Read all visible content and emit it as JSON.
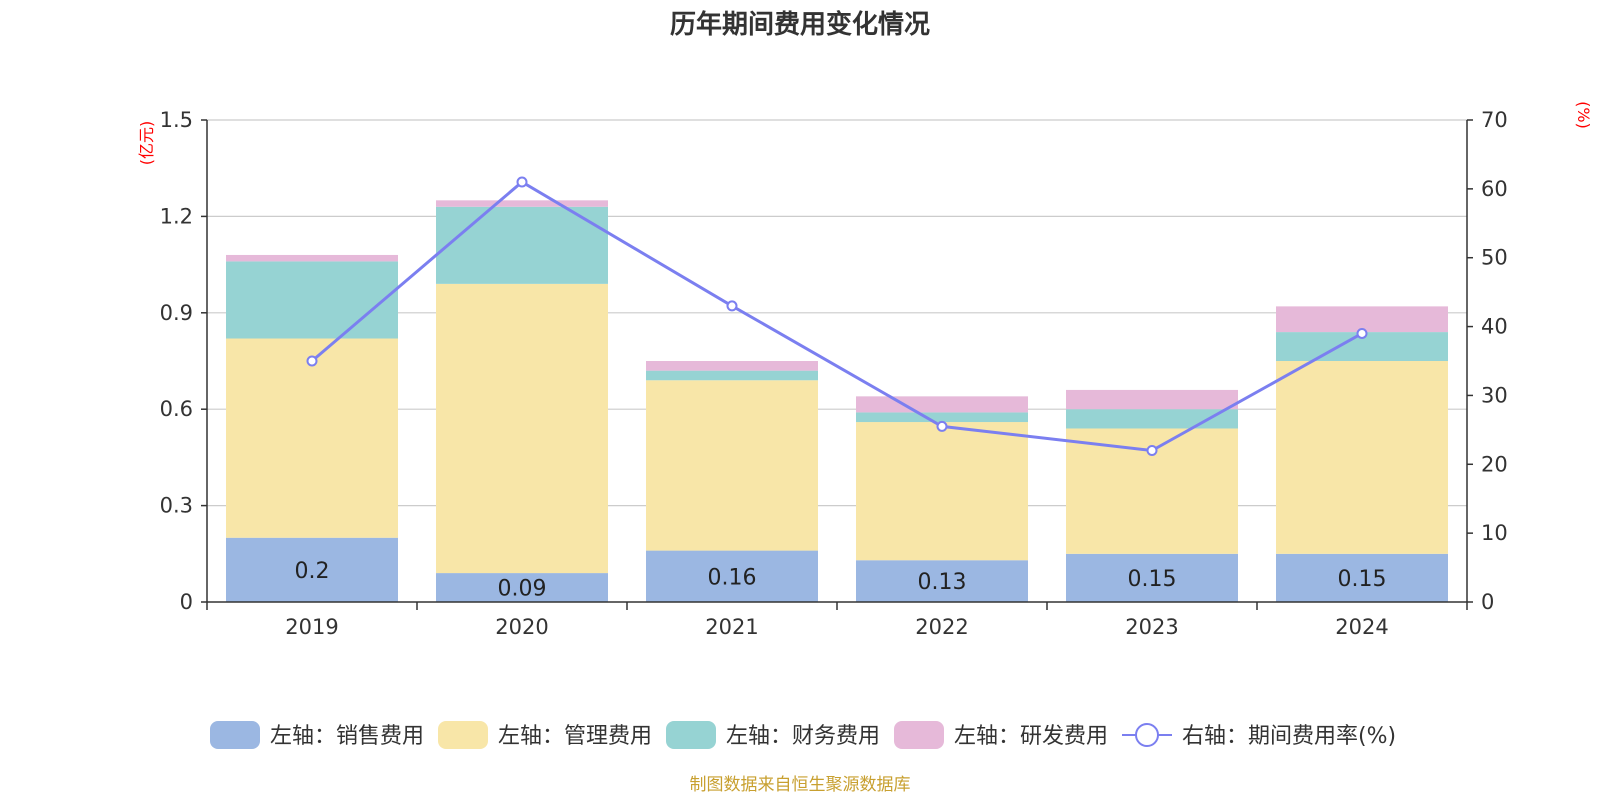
{
  "chart_data": {
    "type": "bar",
    "title": "历年期间费用变化情况",
    "categories": [
      "2019",
      "2020",
      "2021",
      "2022",
      "2023",
      "2024"
    ],
    "left_axis": {
      "unit": "(亿元)",
      "ylim": [
        0,
        1.5
      ],
      "ticks": [
        "0",
        "0.3",
        "0.6",
        "0.9",
        "1.2",
        "1.5"
      ],
      "tick_values": [
        0,
        0.3,
        0.6,
        0.9,
        1.2,
        1.5
      ]
    },
    "right_axis": {
      "unit": "(%)",
      "ylim": [
        0,
        70
      ],
      "ticks": [
        "0",
        "10",
        "20",
        "30",
        "40",
        "50",
        "60",
        "70"
      ],
      "tick_values": [
        0,
        10,
        20,
        30,
        40,
        50,
        60,
        70
      ]
    },
    "series": [
      {
        "name": "左轴：销售费用",
        "type": "bar",
        "stack": true,
        "color": "#9bb7e2",
        "values": [
          0.2,
          0.09,
          0.16,
          0.13,
          0.15,
          0.15
        ],
        "labels": [
          "0.2",
          "0.09",
          "0.16",
          "0.13",
          "0.15",
          "0.15"
        ]
      },
      {
        "name": "左轴：管理费用",
        "type": "bar",
        "stack": true,
        "color": "#f8e6a8",
        "values": [
          0.62,
          0.9,
          0.53,
          0.43,
          0.39,
          0.6
        ]
      },
      {
        "name": "左轴：财务费用",
        "type": "bar",
        "stack": true,
        "color": "#96d3d3",
        "values": [
          0.24,
          0.24,
          0.03,
          0.03,
          0.06,
          0.09
        ]
      },
      {
        "name": "左轴：研发费用",
        "type": "bar",
        "stack": true,
        "color": "#e6b9d9",
        "values": [
          0.02,
          0.02,
          0.03,
          0.05,
          0.06,
          0.08
        ]
      },
      {
        "name": "右轴：期间费用率(%)",
        "type": "line",
        "axis": "right",
        "color": "#7b7ff0",
        "values": [
          35,
          61,
          43,
          25.5,
          22,
          39
        ]
      }
    ],
    "legend_position": "bottom",
    "grid": true
  },
  "footer": {
    "source": "制图数据来自恒生聚源数据库",
    "color": "#c8a030"
  },
  "colors": {
    "axis_unit": "#ff0000",
    "grid": "#cccccc",
    "axis": "#333333"
  }
}
